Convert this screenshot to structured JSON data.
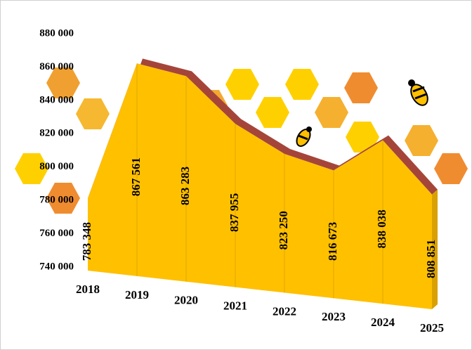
{
  "chart_data": {
    "type": "area",
    "categories": [
      "2018",
      "2019",
      "2020",
      "2021",
      "2022",
      "2023",
      "2024",
      "2025"
    ],
    "values": [
      783348,
      867561,
      863283,
      837955,
      823250,
      816673,
      838038,
      808851
    ],
    "value_labels": [
      "783 348",
      "867 561",
      "863 283",
      "837 955",
      "823 250",
      "816 673",
      "838 038",
      "808 851"
    ],
    "color": "#FFC000",
    "ylim": [
      740000,
      880000
    ],
    "yticks": [
      {
        "value": 740000,
        "label": "740 000"
      },
      {
        "value": 760000,
        "label": "760 000"
      },
      {
        "value": 780000,
        "label": "780 000"
      },
      {
        "value": 800000,
        "label": "800 000"
      },
      {
        "value": 820000,
        "label": "820 000"
      },
      {
        "value": 840000,
        "label": "840 000"
      },
      {
        "value": 860000,
        "label": "860 000"
      },
      {
        "value": 880000,
        "label": "880 000"
      }
    ],
    "grid": false
  }
}
